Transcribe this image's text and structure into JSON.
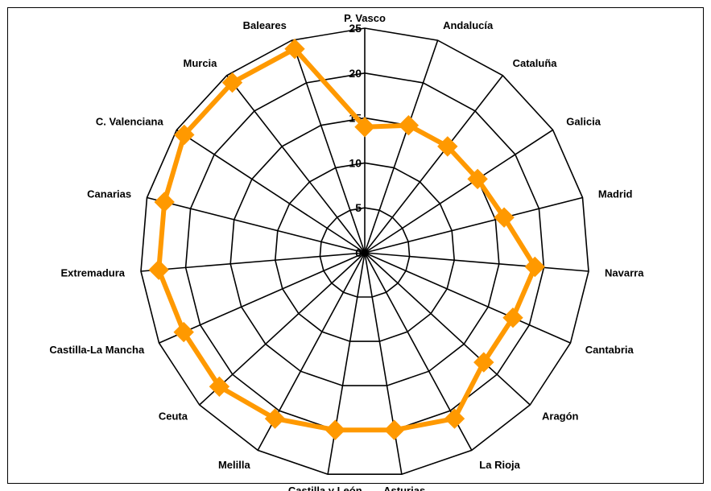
{
  "chart_data": {
    "type": "radar",
    "title": "",
    "categories": [
      "P. Vasco",
      "Andalucía",
      "Cataluña",
      "Galicia",
      "Madrid",
      "Navarra",
      "Cantabria",
      "Aragón",
      "La Rioja",
      "Asturias",
      "Castilla y León",
      "Melilla",
      "Ceuta",
      "Castilla-La Mancha",
      "Extremadura",
      "Canarias",
      "C. Valenciana",
      "Murcia",
      "Baleares"
    ],
    "series": [
      {
        "values": [
          14,
          15,
          15,
          15,
          16,
          19,
          18,
          18,
          21,
          20,
          20,
          21,
          22,
          22,
          23,
          23,
          24,
          24,
          24
        ],
        "color": "#FF9900"
      }
    ],
    "rlim": [
      0,
      25
    ],
    "ticks": [
      0,
      5,
      10,
      15,
      20,
      25
    ],
    "tick_labels": [
      "0",
      "5",
      "10",
      "15",
      "20",
      "25"
    ],
    "grid": true,
    "legend": "none",
    "marker": "diamond"
  }
}
